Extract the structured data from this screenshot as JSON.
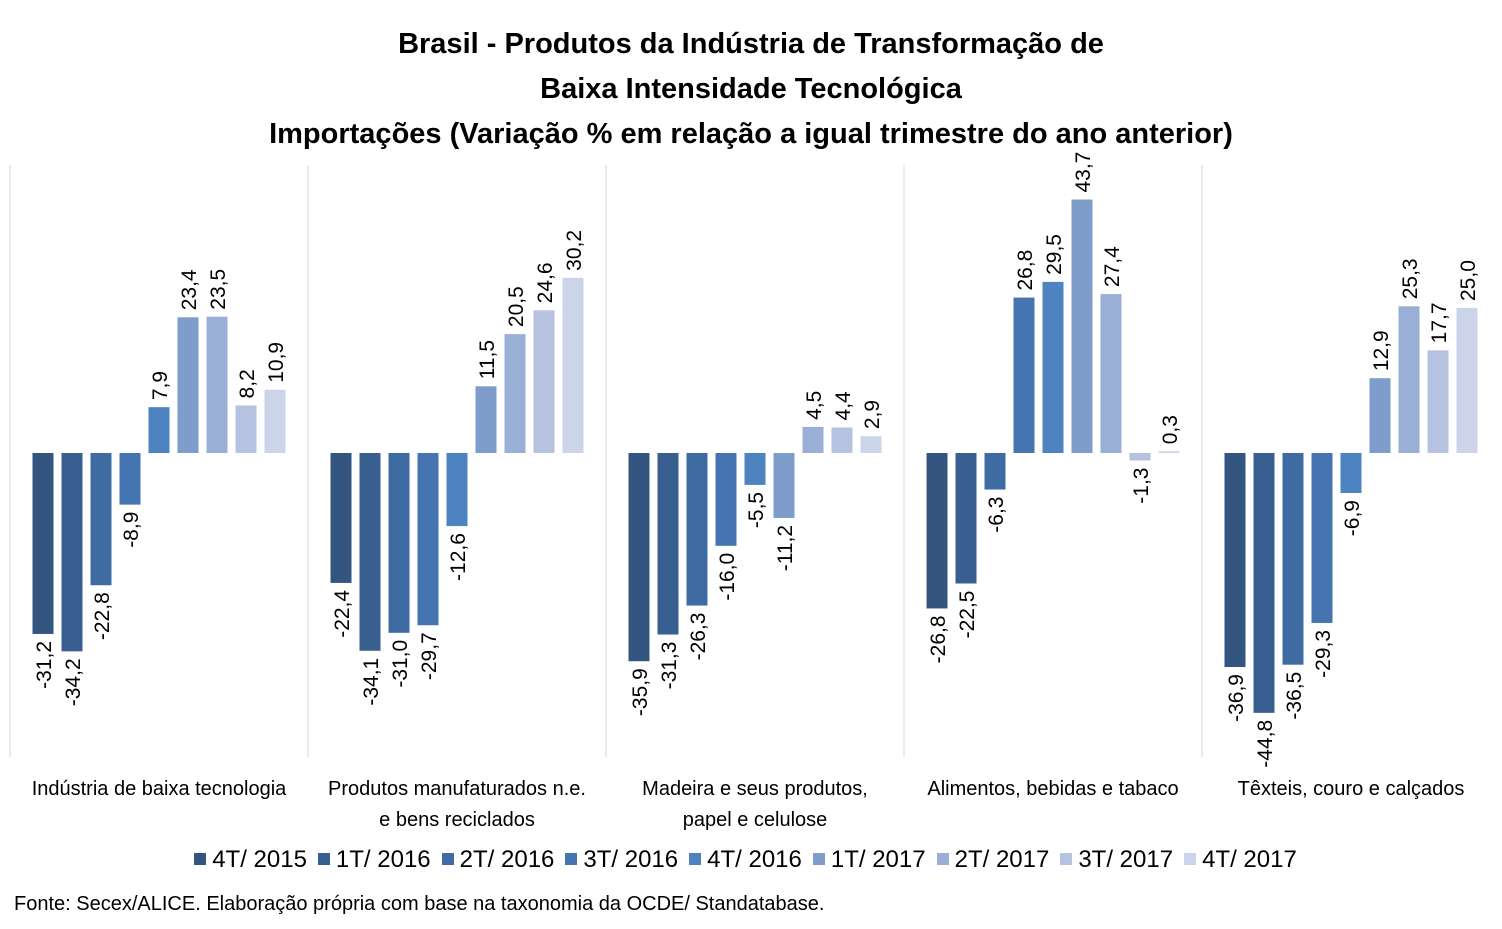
{
  "chart_data": {
    "type": "bar",
    "title_lines": [
      "Brasil - Produtos da Indústria de Transformação de",
      "Baixa Intensidade Tecnológica",
      "Importações (Variação % em relação a igual trimestre do ano anterior)"
    ],
    "categories": [
      [
        "Indústria de baixa tecnologia"
      ],
      [
        "Produtos manufaturados n.e.",
        "e bens reciclados"
      ],
      [
        "Madeira e seus produtos,",
        "papel e celulose"
      ],
      [
        "Alimentos, bebidas e tabaco"
      ],
      [
        "Têxteis, couro e calçados"
      ]
    ],
    "series": [
      {
        "name": "4T/ 2015",
        "color": "#34557f",
        "values": [
          -31.2,
          -22.4,
          -35.9,
          -26.8,
          -36.9
        ]
      },
      {
        "name": "1T/ 2016",
        "color": "#385f90",
        "values": [
          -34.2,
          -34.1,
          -31.3,
          -22.5,
          -44.8
        ]
      },
      {
        "name": "2T/ 2016",
        "color": "#3f6ba3",
        "values": [
          -22.8,
          -31.0,
          -26.3,
          -6.3,
          -36.5
        ]
      },
      {
        "name": "3T/ 2016",
        "color": "#4574b1",
        "values": [
          -8.9,
          -29.7,
          -16.0,
          26.8,
          -29.3
        ]
      },
      {
        "name": "4T/ 2016",
        "color": "#4e83c2",
        "values": [
          7.9,
          -12.6,
          -5.5,
          29.5,
          -6.9
        ]
      },
      {
        "name": "1T/ 2017",
        "color": "#7f9dcb",
        "values": [
          23.4,
          11.5,
          -11.2,
          43.7,
          12.9
        ]
      },
      {
        "name": "2T/ 2017",
        "color": "#9aafd5",
        "values": [
          23.5,
          20.5,
          4.5,
          27.4,
          25.3
        ]
      },
      {
        "name": "3T/ 2017",
        "color": "#b5c3e1",
        "values": [
          8.2,
          24.6,
          4.4,
          -1.3,
          17.7
        ]
      },
      {
        "name": "4T/ 2017",
        "color": "#cbd4e9",
        "values": [
          10.9,
          30.2,
          2.9,
          0.3,
          25.0
        ]
      }
    ],
    "value_labels": [
      [
        "-31,2",
        "-22,4",
        "-35,9",
        "-26,8",
        "-36,9"
      ],
      [
        "-34,2",
        "-34,1",
        "-31,3",
        "-22,5",
        "-44,8"
      ],
      [
        "-22,8",
        "-31,0",
        "-26,3",
        "-6,3",
        "-36,5"
      ],
      [
        "-8,9",
        "-29,7",
        "-16,0",
        "26,8",
        "-29,3"
      ],
      [
        "7,9",
        "-12,6",
        "-5,5",
        "29,5",
        "-6,9"
      ],
      [
        "23,4",
        "11,5",
        "-11,2",
        "43,7",
        "12,9"
      ],
      [
        "23,5",
        "20,5",
        "4,5",
        "27,4",
        "25,3"
      ],
      [
        "8,2",
        "24,6",
        "4,4",
        "-1,3",
        "17,7"
      ],
      [
        "10,9",
        "30,2",
        "2,9",
        "0,3",
        "25,0"
      ]
    ],
    "legend_position": "bottom",
    "grid": false,
    "source": "Fonte: Secex/ALICE. Elaboração própria com base na taxonomia da OCDE/ Standatabase."
  }
}
